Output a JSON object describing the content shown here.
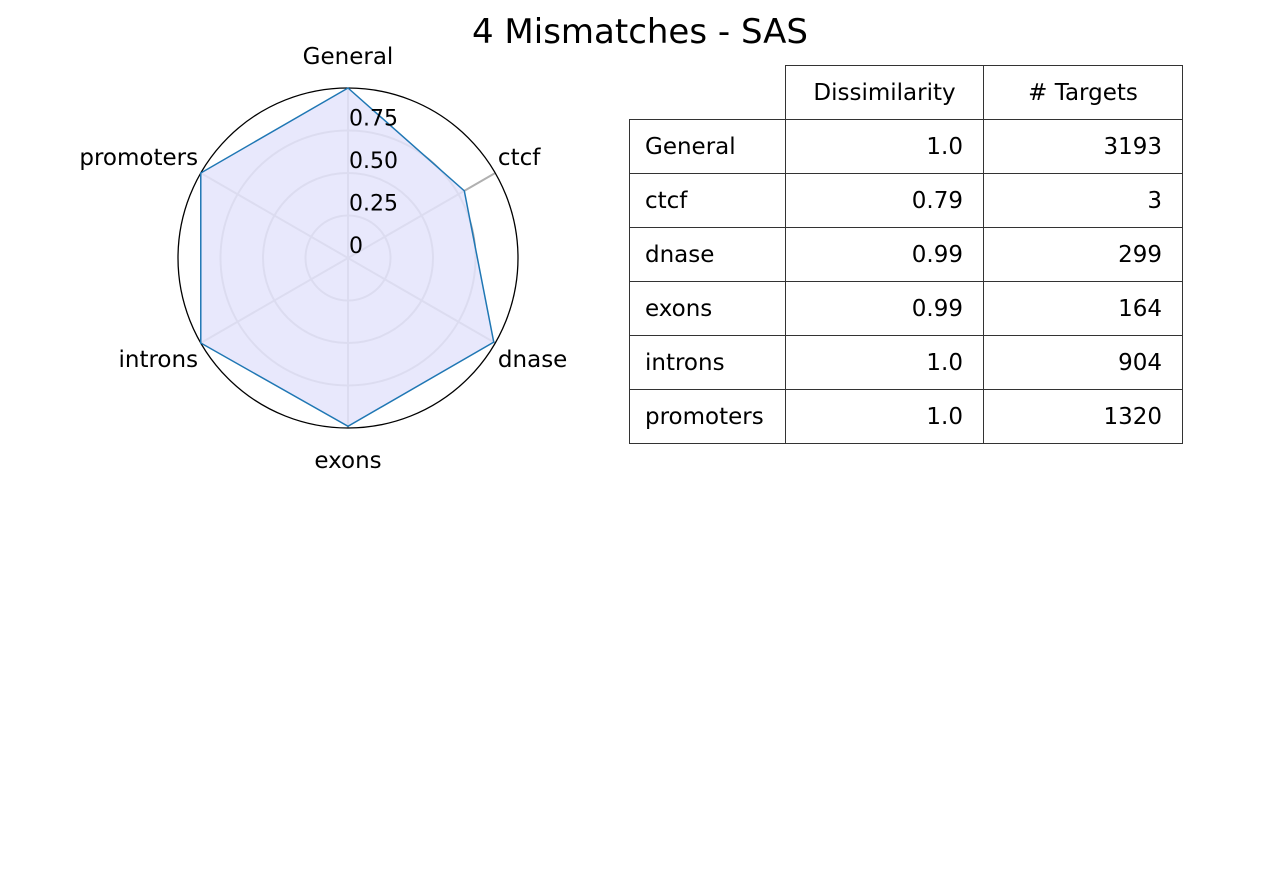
{
  "title": "4 Mismatches - SAS",
  "chart_data": {
    "type": "radar",
    "title": "4 Mismatches - SAS",
    "categories": [
      "General",
      "ctcf",
      "dnase",
      "exons",
      "introns",
      "promoters"
    ],
    "values": [
      1.0,
      0.79,
      0.99,
      0.99,
      1.0,
      1.0
    ],
    "rlim": [
      0,
      1.0
    ],
    "radial_ticks": [
      0,
      0.25,
      0.5,
      0.75
    ],
    "radial_tick_labels": [
      "0",
      "0.25",
      "0.50",
      "0.75"
    ],
    "colors": {
      "line": "#1f77b4",
      "fill": "#e4e4fc",
      "grid": "#b0b0b0",
      "frame": "#000000"
    }
  },
  "table": {
    "headers": [
      "",
      "Dissimilarity",
      "# Targets"
    ],
    "rows": [
      {
        "label": "General",
        "dissimilarity": "1.0",
        "targets": "3193"
      },
      {
        "label": "ctcf",
        "dissimilarity": "0.79",
        "targets": "3"
      },
      {
        "label": "dnase",
        "dissimilarity": "0.99",
        "targets": "299"
      },
      {
        "label": "exons",
        "dissimilarity": "0.99",
        "targets": "164"
      },
      {
        "label": "introns",
        "dissimilarity": "1.0",
        "targets": "904"
      },
      {
        "label": "promoters",
        "dissimilarity": "1.0",
        "targets": "1320"
      }
    ]
  }
}
